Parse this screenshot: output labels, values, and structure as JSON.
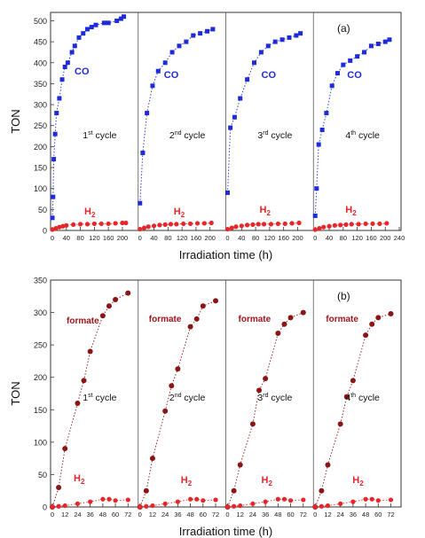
{
  "charts": [
    {
      "id": "a",
      "panel_label": "(a)",
      "y_axis_label": "TON",
      "x_axis_label": "Irradiation time (h)",
      "panel_x_ticks": [
        "0",
        "40",
        "80",
        "120",
        "160",
        "200"
      ],
      "panel_x_ticks_last": [
        "0",
        "40",
        "80",
        "120",
        "160",
        "200",
        "240"
      ],
      "y_ticks": [
        "0",
        "50",
        "100",
        "150",
        "200",
        "250",
        "300",
        "350",
        "400",
        "450",
        "500"
      ],
      "panels": [
        {
          "cycle_num": "1",
          "cycle_sup": "st",
          "cycle_word": " cycle",
          "series_label": "CO",
          "h2_label": "H"
        },
        {
          "cycle_num": "2",
          "cycle_sup": "nd",
          "cycle_word": " cycle",
          "series_label": "CO",
          "h2_label": "H"
        },
        {
          "cycle_num": "3",
          "cycle_sup": "rd",
          "cycle_word": " cycle",
          "series_label": "CO",
          "h2_label": "H"
        },
        {
          "cycle_num": "4",
          "cycle_sup": "th",
          "cycle_word": " cycle",
          "series_label": "CO",
          "h2_label": "H"
        }
      ]
    },
    {
      "id": "b",
      "panel_label": "(b)",
      "y_axis_label": "TON",
      "x_axis_label": "Irradiation time (h)",
      "panel_x_ticks": [
        "0",
        "12",
        "24",
        "36",
        "48",
        "60",
        "72"
      ],
      "panel_x_ticks_last": [
        "0",
        "12",
        "24",
        "36",
        "48",
        "60",
        "72"
      ],
      "y_ticks": [
        "0",
        "50",
        "100",
        "150",
        "200",
        "250",
        "300",
        "350"
      ],
      "panels": [
        {
          "cycle_num": "1",
          "cycle_sup": "st",
          "cycle_word": " cycle",
          "series_label": "formate",
          "h2_label": "H"
        },
        {
          "cycle_num": "2",
          "cycle_sup": "nd",
          "cycle_word": " cycle",
          "series_label": "formate",
          "h2_label": "H"
        },
        {
          "cycle_num": "3",
          "cycle_sup": "rd",
          "cycle_word": " cycle",
          "series_label": "formate",
          "h2_label": "H"
        },
        {
          "cycle_num": "4",
          "cycle_sup": "th",
          "cycle_word": " cycle",
          "series_label": "formate",
          "h2_label": "H"
        }
      ]
    }
  ],
  "h2_subscript": "2",
  "colors": {
    "co": "#1f2bd8",
    "h2": "#e8262a",
    "formate": "#8b1414",
    "formate_label": "#a0161a",
    "axis": "#333333"
  },
  "chart_data": [
    {
      "type": "scatter",
      "title": "",
      "ylabel": "TON",
      "xlabel": "Irradiation time (h)",
      "ylim": [
        0,
        520
      ],
      "xlim_per_panel": [
        0,
        240
      ],
      "grid": false,
      "panels": [
        {
          "cycle": "1st cycle",
          "series": [
            {
              "name": "CO",
              "x": [
                0,
                2,
                4,
                8,
                12,
                20,
                28,
                36,
                44,
                56,
                64,
                76,
                88,
                100,
                112,
                124,
                148,
                160,
                184,
                196,
                204
              ],
              "y": [
                30,
                80,
                170,
                230,
                280,
                315,
                360,
                390,
                400,
                425,
                440,
                460,
                470,
                480,
                485,
                490,
                495,
                495,
                500,
                505,
                510
              ]
            },
            {
              "name": "H2",
              "x": [
                0,
                10,
                20,
                30,
                40,
                60,
                80,
                100,
                120,
                140,
                160,
                180,
                200,
                210
              ],
              "y": [
                2,
                5,
                8,
                10,
                12,
                14,
                15,
                15,
                16,
                16,
                16,
                17,
                18,
                18
              ]
            }
          ]
        },
        {
          "cycle": "2nd cycle",
          "series": [
            {
              "name": "CO",
              "x": [
                0,
                8,
                20,
                36,
                52,
                72,
                92,
                112,
                132,
                152,
                172,
                192,
                208
              ],
              "y": [
                65,
                185,
                280,
                345,
                380,
                400,
                425,
                440,
                450,
                465,
                470,
                475,
                480
              ]
            },
            {
              "name": "H2",
              "x": [
                0,
                12,
                24,
                40,
                56,
                72,
                88,
                104,
                124,
                144,
                164,
                184,
                204
              ],
              "y": [
                3,
                6,
                9,
                11,
                13,
                14,
                15,
                15,
                16,
                16,
                17,
                17,
                18
              ]
            }
          ]
        },
        {
          "cycle": "3rd cycle",
          "series": [
            {
              "name": "CO",
              "x": [
                0,
                8,
                20,
                36,
                56,
                76,
                96,
                116,
                136,
                156,
                176,
                196,
                208
              ],
              "y": [
                90,
                245,
                270,
                315,
                360,
                400,
                425,
                440,
                450,
                455,
                460,
                465,
                470
              ]
            },
            {
              "name": "H2",
              "x": [
                0,
                12,
                24,
                40,
                56,
                72,
                88,
                104,
                124,
                144,
                164,
                184,
                204
              ],
              "y": [
                3,
                6,
                9,
                11,
                13,
                14,
                15,
                15,
                15,
                16,
                16,
                17,
                18
              ]
            }
          ]
        },
        {
          "cycle": "4th cycle",
          "series": [
            {
              "name": "CO",
              "x": [
                0,
                4,
                10,
                20,
                32,
                48,
                64,
                80,
                100,
                120,
                140,
                160,
                180,
                200,
                212
              ],
              "y": [
                35,
                100,
                205,
                240,
                280,
                345,
                375,
                395,
                405,
                415,
                425,
                440,
                445,
                450,
                455
              ]
            },
            {
              "name": "H2",
              "x": [
                0,
                12,
                24,
                40,
                56,
                72,
                88,
                104,
                124,
                144,
                164,
                184,
                204
              ],
              "y": [
                2,
                5,
                8,
                10,
                12,
                13,
                14,
                15,
                15,
                16,
                16,
                16,
                17
              ]
            }
          ]
        }
      ]
    },
    {
      "type": "scatter",
      "title": "",
      "ylabel": "TON",
      "xlabel": "Irradiation time (h)",
      "ylim": [
        0,
        350
      ],
      "xlim_per_panel": [
        0,
        80
      ],
      "grid": false,
      "panels": [
        {
          "cycle": "1st cycle",
          "series": [
            {
              "name": "formate",
              "x": [
                0,
                6,
                12,
                24,
                30,
                36,
                48,
                54,
                60,
                72
              ],
              "y": [
                0,
                30,
                90,
                160,
                195,
                240,
                295,
                310,
                320,
                330
              ]
            },
            {
              "name": "H2",
              "x": [
                0,
                6,
                12,
                24,
                36,
                48,
                54,
                60,
                72
              ],
              "y": [
                0,
                1,
                2,
                5,
                8,
                12,
                12,
                10,
                11
              ]
            }
          ]
        },
        {
          "cycle": "2nd cycle",
          "series": [
            {
              "name": "formate",
              "x": [
                0,
                6,
                12,
                24,
                30,
                36,
                48,
                54,
                60,
                72
              ],
              "y": [
                0,
                25,
                75,
                148,
                187,
                213,
                278,
                290,
                310,
                318
              ]
            },
            {
              "name": "H2",
              "x": [
                0,
                6,
                12,
                24,
                36,
                48,
                54,
                60,
                72
              ],
              "y": [
                0,
                1,
                2,
                5,
                8,
                12,
                12,
                10,
                11
              ]
            }
          ]
        },
        {
          "cycle": "3rd cycle",
          "series": [
            {
              "name": "formate",
              "x": [
                0,
                6,
                12,
                24,
                30,
                36,
                48,
                54,
                60,
                72
              ],
              "y": [
                0,
                25,
                65,
                128,
                180,
                198,
                268,
                282,
                292,
                300
              ]
            },
            {
              "name": "H2",
              "x": [
                0,
                6,
                12,
                24,
                36,
                48,
                54,
                60,
                72
              ],
              "y": [
                0,
                1,
                2,
                5,
                8,
                12,
                12,
                10,
                11
              ]
            }
          ]
        },
        {
          "cycle": "4th cycle",
          "series": [
            {
              "name": "formate",
              "x": [
                0,
                6,
                12,
                24,
                30,
                36,
                48,
                54,
                60,
                72
              ],
              "y": [
                0,
                25,
                65,
                128,
                170,
                195,
                265,
                282,
                292,
                298
              ]
            },
            {
              "name": "H2",
              "x": [
                0,
                6,
                12,
                24,
                36,
                48,
                54,
                60,
                72
              ],
              "y": [
                0,
                1,
                2,
                5,
                8,
                12,
                12,
                10,
                11
              ]
            }
          ]
        }
      ]
    }
  ]
}
